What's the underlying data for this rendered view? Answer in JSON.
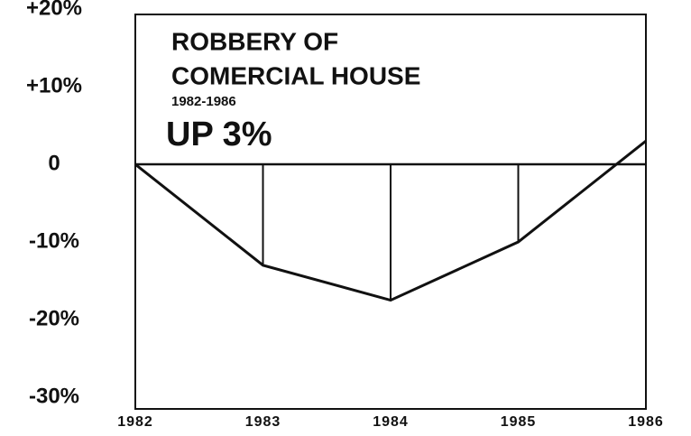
{
  "chart_data": {
    "type": "line",
    "title": [
      "ROBBERY OF",
      "COMERCIAL HOUSE"
    ],
    "subtitle": "1982-1986",
    "annotation": "UP 3%",
    "categories": [
      "1982",
      "1983",
      "1984",
      "1985",
      "1986"
    ],
    "values": [
      0,
      -13,
      -17.5,
      -10,
      3
    ],
    "color": "#111111",
    "drop_lines": true,
    "ylim": [
      -31.5,
      19.3
    ],
    "yticks": [
      {
        "value": 20,
        "label": "+20%"
      },
      {
        "value": 10,
        "label": "+10%"
      },
      0,
      {
        "value": -10,
        "label": "-10%"
      },
      {
        "value": -20,
        "label": "-20%"
      },
      {
        "value": -30,
        "label": "-30%"
      }
    ]
  }
}
